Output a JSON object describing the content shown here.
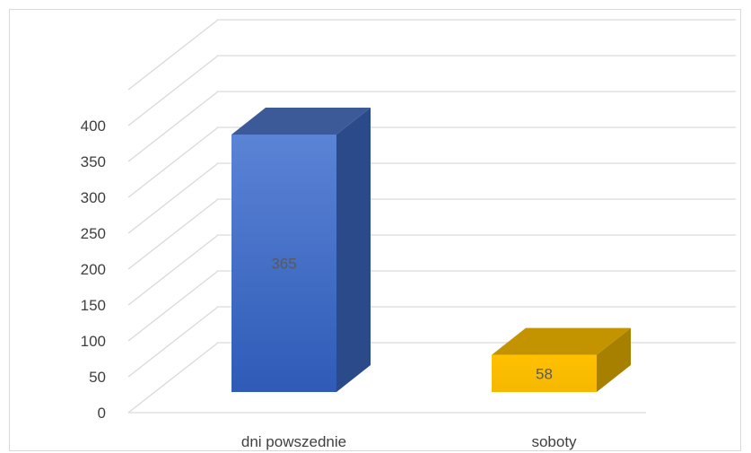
{
  "chart_data": {
    "type": "bar",
    "style": "3d-column",
    "categories": [
      "dni powszednie",
      "soboty"
    ],
    "values": [
      365,
      58
    ],
    "data_labels": [
      "365",
      "58"
    ],
    "ylim": [
      0,
      400
    ],
    "yticks": [
      0,
      50,
      100,
      150,
      200,
      250,
      300,
      350,
      400
    ],
    "grid": true,
    "legend": "none",
    "bar_colors": [
      {
        "front": "#4472c4",
        "front_light": "#5b84d6",
        "front_dark": "#2f5bb7",
        "side": "#2a4a8a",
        "top": "#3d5a98"
      },
      {
        "front": "#ffc000",
        "front_light": "#ffc000",
        "front_dark": "#f5b800",
        "side": "#a88000",
        "top": "#c49300"
      }
    ]
  }
}
